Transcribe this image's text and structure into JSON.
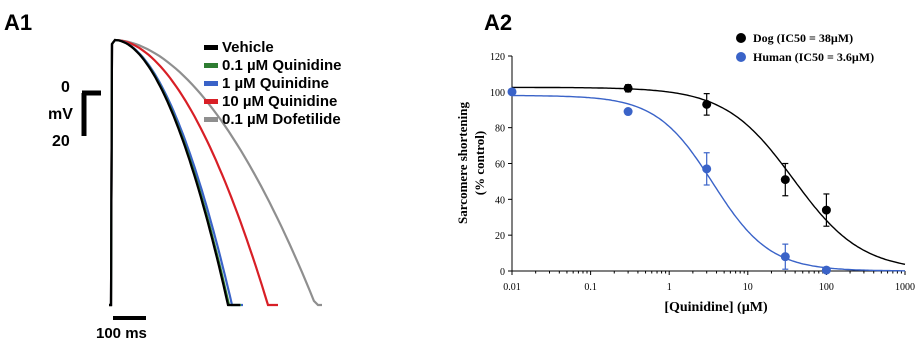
{
  "panels": {
    "a1_label": "A1",
    "a2_label": "A2"
  },
  "chart_data": [
    {
      "type": "line",
      "panel": "A1",
      "series": [
        {
          "name": "Vehicle",
          "color": "#000000"
        },
        {
          "name": "0.1 µM Quinidine",
          "color": "#2e7d32"
        },
        {
          "name": "1 µM Quinidine",
          "color": "#3a63c8"
        },
        {
          "name": "10 µM Quinidine",
          "color": "#d81f26"
        },
        {
          "name": "0.1 µM Dofetilide",
          "color": "#8f8f8f"
        }
      ],
      "scale_bar": {
        "voltage_top": "0",
        "voltage_unit": "mV",
        "voltage_bottom": "20",
        "time": "100 ms"
      }
    },
    {
      "type": "scatter",
      "panel": "A2",
      "xlabel": "[Quinidine] (µM)",
      "ylabel_line1": "Sarcomere shortening",
      "ylabel_line2": "(% control)",
      "x_scale": "log",
      "xlim": [
        0.01,
        1000
      ],
      "ylim": [
        0,
        120
      ],
      "x_ticks": [
        "0.01",
        "0.1",
        "1",
        "10",
        "100",
        "1000"
      ],
      "y_ticks": [
        "0",
        "20",
        "40",
        "60",
        "80",
        "100",
        "120"
      ],
      "legend_position": "top-right",
      "series": [
        {
          "name": "Dog (IC50 = 38µM)",
          "color": "#000000",
          "x": [
            0.3,
            3,
            30,
            100
          ],
          "y": [
            102,
            93,
            51,
            34
          ],
          "error": [
            2,
            6,
            9,
            9
          ],
          "fit": {
            "top": 102.5,
            "ic50": 38,
            "hill": 1.0
          }
        },
        {
          "name": "Human (IC50 = 3.6µM)",
          "color": "#3a63c8",
          "x": [
            0.01,
            0.3,
            3,
            30,
            100
          ],
          "y": [
            100,
            89,
            57,
            8,
            0.5
          ],
          "error": [
            0,
            0,
            9,
            7,
            0
          ],
          "fit": {
            "top": 98,
            "ic50": 3.6,
            "hill": 1.2
          }
        }
      ]
    }
  ]
}
